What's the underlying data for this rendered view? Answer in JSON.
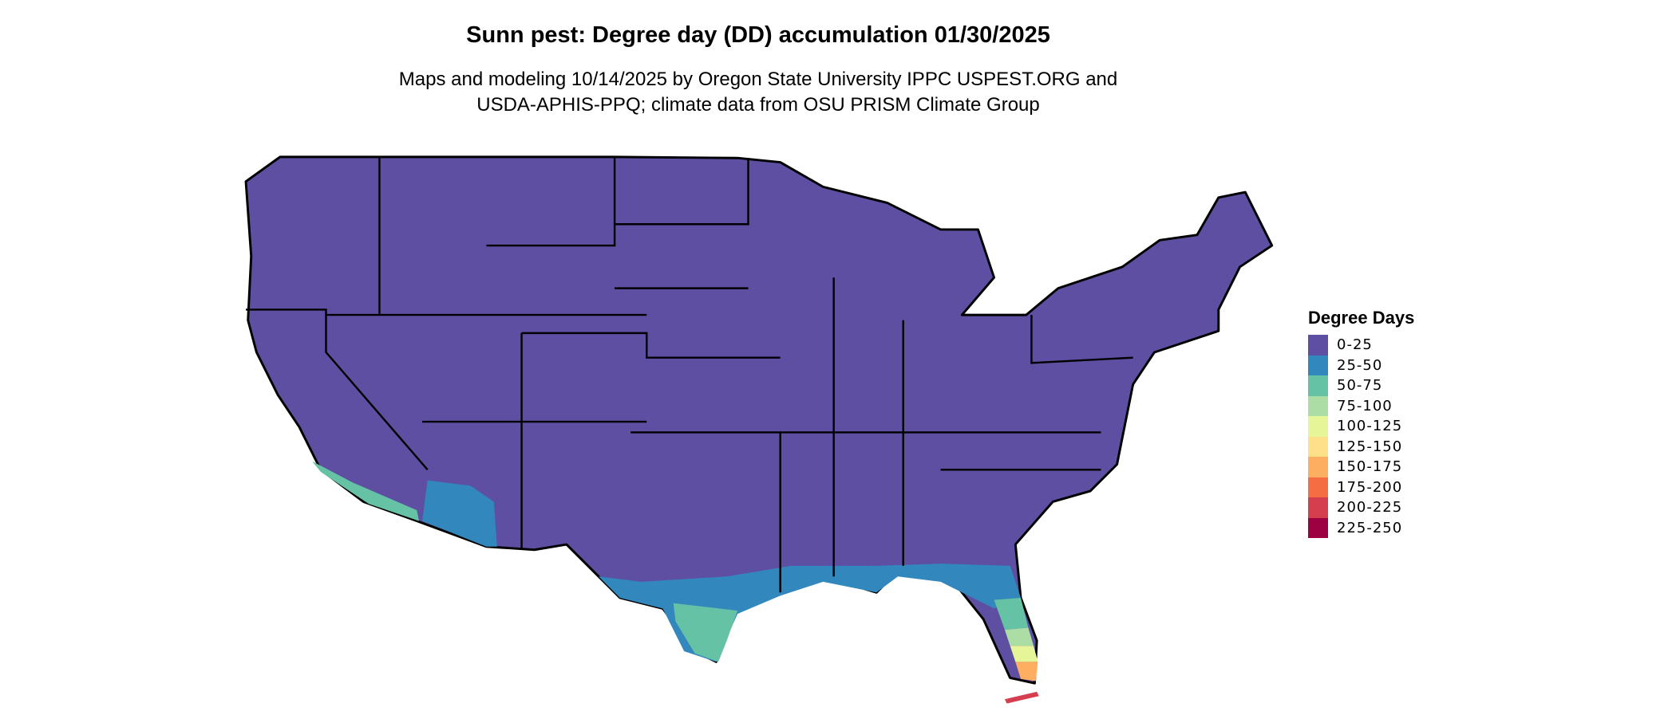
{
  "title": "Sunn pest: Degree day (DD) accumulation 01/30/2025",
  "subtitle_lines": [
    "Maps and modeling 10/14/2025 by Oregon State University IPPC USPEST.ORG and",
    "USDA-APHIS-PPQ; climate data from OSU PRISM Climate Group"
  ],
  "legend": {
    "title": "Degree Days",
    "placement": "right",
    "items": [
      {
        "label": "0-25",
        "color": "#5E4FA2"
      },
      {
        "label": "25-50",
        "color": "#3288BD"
      },
      {
        "label": "50-75",
        "color": "#66C2A5"
      },
      {
        "label": "75-100",
        "color": "#ABDDA4"
      },
      {
        "label": "100-125",
        "color": "#E6F598"
      },
      {
        "label": "125-150",
        "color": "#FEE08B"
      },
      {
        "label": "150-175",
        "color": "#FDAE61"
      },
      {
        "label": "175-200",
        "color": "#F46D43"
      },
      {
        "label": "200-225",
        "color": "#D53E4F"
      },
      {
        "label": "225-250",
        "color": "#9E0142"
      }
    ]
  },
  "map": {
    "region": "Contiguous United States",
    "boundaries": "state outlines in black"
  }
}
